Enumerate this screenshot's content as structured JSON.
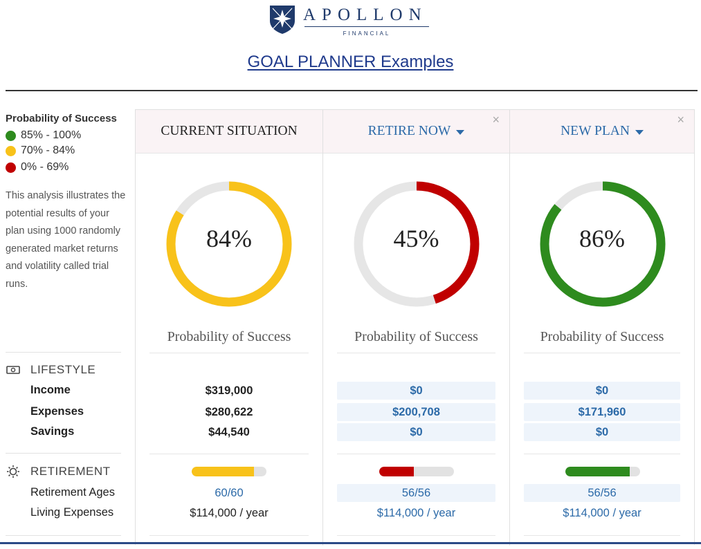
{
  "header": {
    "logo_name": "APOLLON",
    "logo_sub": "FINANCIAL",
    "title": "GOAL PLANNER Examples",
    "logo_colors": {
      "navy": "#1f3a6b",
      "star": "#ffffff"
    }
  },
  "legend": {
    "title": "Probability of Success",
    "items": [
      {
        "label": "85% - 100%",
        "color": "#2e8b1e"
      },
      {
        "label": "70% - 84%",
        "color": "#f8c21a"
      },
      {
        "label": "0% - 69%",
        "color": "#c00000"
      }
    ]
  },
  "description": "This analysis illustrates the potential results of your plan using 1000 randomly generated market returns and volatility called trial runs.",
  "sections": {
    "lifestyle": {
      "title": "LIFESTYLE",
      "icon": "money-icon",
      "rows": [
        "Income",
        "Expenses",
        "Savings"
      ]
    },
    "retirement": {
      "title": "RETIREMENT",
      "icon": "sun-icon",
      "rows": [
        "Retirement Ages",
        "Living Expenses"
      ]
    }
  },
  "plans": [
    {
      "title": "CURRENT SITUATION",
      "dropdown": false,
      "closable": false,
      "probability": 84,
      "probability_text": "84%",
      "color": "#f8c21a",
      "probability_label": "Probability of Success",
      "lifestyle": {
        "income": "$319,000",
        "expenses": "$280,622",
        "savings": "$44,540"
      },
      "retirement_progress": 0.83,
      "retirement_ages": "60/60",
      "living_expenses": "$114,000 / year"
    },
    {
      "title": "RETIRE NOW",
      "dropdown": true,
      "closable": true,
      "close_label": "×",
      "probability": 45,
      "probability_text": "45%",
      "color": "#c00000",
      "probability_label": "Probability of Success",
      "lifestyle": {
        "income": "$0",
        "expenses": "$200,708",
        "savings": "$0"
      },
      "retirement_progress": 0.46,
      "retirement_ages": "56/56",
      "living_expenses": "$114,000 / year"
    },
    {
      "title": "NEW PLAN",
      "dropdown": true,
      "closable": true,
      "close_label": "×",
      "probability": 86,
      "probability_text": "86%",
      "color": "#2e8b1e",
      "probability_label": "Probability of Success",
      "lifestyle": {
        "income": "$0",
        "expenses": "$171,960",
        "savings": "$0"
      },
      "retirement_progress": 0.86,
      "retirement_ages": "56/56",
      "living_expenses": "$114,000 / year"
    }
  ]
}
